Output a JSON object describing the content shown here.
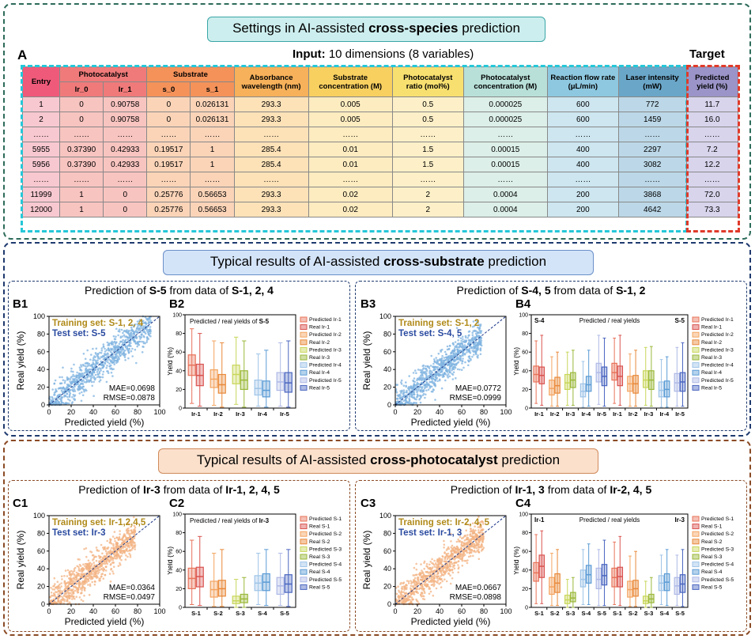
{
  "panelA": {
    "banner_prefix": "Settings in AI-assisted ",
    "banner_bold": "cross-species",
    "banner_suffix": " prediction",
    "label": "A",
    "input_bold": "Input:",
    "input_rest": " 10 dimensions (8 variables)",
    "target": "Target",
    "headers": {
      "entry": "Entry",
      "photocatalyst": "Photocatalyst",
      "ir0": "Ir_0",
      "ir1": "Ir_1",
      "substrate": "Substrate",
      "s0": "s_0",
      "s1": "s_1",
      "absorbance": "Absorbance wavelength (nm)",
      "subconc": "Substrate concentration (M)",
      "ratio": "Photocatalyst ratio (mol%)",
      "pcconc": "Photocatalyst concentration (M)",
      "flow": "Reaction flow rate (μL/min)",
      "laser": "Laser intensity (mW)",
      "yield": "Predicted yield (%)"
    },
    "rows": [
      [
        "1",
        "0",
        "0.90758",
        "0",
        "0.026131",
        "293.3",
        "0.005",
        "0.5",
        "0.000025",
        "600",
        "772",
        "11.7"
      ],
      [
        "2",
        "0",
        "0.90758",
        "0",
        "0.026131",
        "293.3",
        "0.005",
        "0.5",
        "0.000025",
        "600",
        "1459",
        "16.0"
      ],
      [
        "……",
        "……",
        "……",
        "……",
        "……",
        "……",
        "……",
        "……",
        "……",
        "……",
        "……",
        "……"
      ],
      [
        "5955",
        "0.37390",
        "0.42933",
        "0.19517",
        "1",
        "285.4",
        "0.01",
        "1.5",
        "0.00015",
        "400",
        "2297",
        "7.2"
      ],
      [
        "5956",
        "0.37390",
        "0.42933",
        "0.19517",
        "1",
        "285.4",
        "0.01",
        "1.5",
        "0.00015",
        "400",
        "3082",
        "12.2"
      ],
      [
        "……",
        "……",
        "……",
        "……",
        "……",
        "……",
        "……",
        "……",
        "……",
        "……",
        "……",
        "……"
      ],
      [
        "11999",
        "1",
        "0",
        "0.25776",
        "0.56653",
        "293.3",
        "0.02",
        "2",
        "0.0004",
        "200",
        "3868",
        "72.0"
      ],
      [
        "12000",
        "1",
        "0",
        "0.25776",
        "0.56653",
        "293.3",
        "0.02",
        "2",
        "0.0004",
        "200",
        "4642",
        "73.3"
      ]
    ]
  },
  "panelB": {
    "banner_prefix": "Typical results of AI-assisted ",
    "banner_bold": "cross-substrate",
    "banner_suffix": " prediction",
    "left_title": {
      "a": "Prediction of ",
      "b": "S-5",
      "c": " from data of ",
      "d": "S-1, 2, 4"
    },
    "right_title": {
      "a": "Prediction of ",
      "b": "S-4, 5",
      "c": " from data of ",
      "d": "S-1, 2"
    }
  },
  "panelC": {
    "banner_prefix": "Typical results of AI-assisted ",
    "banner_bold": "cross-photocatalyst",
    "banner_suffix": " prediction",
    "left_title": {
      "a": "Prediction of ",
      "b": "Ir-3",
      "c": " from data of ",
      "d": "Ir-1, 2, 4, 5"
    },
    "right_title": {
      "a": "Prediction of ",
      "b": "Ir-1, 3",
      "c": " from data of ",
      "d": "Ir-2, 4, 5"
    }
  },
  "chart_data": [
    {
      "id": "B1",
      "type": "scatter",
      "xlabel": "Predicted yield (%)",
      "ylabel": "Real yield (%)",
      "xlim": [
        0,
        100
      ],
      "ylim": [
        0,
        100
      ],
      "ticks": [
        0,
        20,
        40,
        60,
        80,
        100
      ],
      "training": "Training set: S-1, 2, 4",
      "test": "Test set: S-5",
      "mae": "MAE=0.0698",
      "rmse": "RMSE=0.0878",
      "color": "#7fb3e0",
      "xmax_data": 92
    },
    {
      "id": "B2",
      "type": "box",
      "title_prefix": "Predicted / real yields of ",
      "title_bold": "S-5",
      "ylabel": "Yield (%)",
      "ylim": [
        0,
        100
      ],
      "ticks": [
        0,
        20,
        40,
        60,
        80,
        100
      ],
      "categories": [
        "Ir-1",
        "Ir-2",
        "Ir-3",
        "Ir-4",
        "Ir-5"
      ],
      "legend": [
        "Predicted Ir-1",
        "Real Ir-1",
        "Predicted Ir-2",
        "Real Ir-2",
        "Predicted Ir-3",
        "Real Ir-3",
        "Predicted Ir-4",
        "Real Ir-4",
        "Predicted Ir-5",
        "Real Ir-5"
      ],
      "colors": [
        "#e8735a",
        "#d9534f",
        "#f4a460",
        "#e8893a",
        "#c8d65a",
        "#9ab83a",
        "#9ec4e8",
        "#5b9bd5",
        "#aeb9e6",
        "#4a66c0"
      ],
      "boxes": [
        {
          "q1": 35,
          "med": 46,
          "q3": 57,
          "lo": 5,
          "hi": 85
        },
        {
          "q1": 24,
          "med": 35,
          "q3": 47,
          "lo": 2,
          "hi": 80
        },
        {
          "q1": 22,
          "med": 31,
          "q3": 41,
          "lo": 3,
          "hi": 72
        },
        {
          "q1": 16,
          "med": 25,
          "q3": 36,
          "lo": 1,
          "hi": 70
        },
        {
          "q1": 26,
          "med": 36,
          "q3": 46,
          "lo": 4,
          "hi": 76
        },
        {
          "q1": 20,
          "med": 30,
          "q3": 40,
          "lo": 1,
          "hi": 72
        },
        {
          "q1": 14,
          "med": 21,
          "q3": 30,
          "lo": 2,
          "hi": 58
        },
        {
          "q1": 12,
          "med": 19,
          "q3": 29,
          "lo": 1,
          "hi": 62
        },
        {
          "q1": 19,
          "med": 28,
          "q3": 38,
          "lo": 2,
          "hi": 70
        },
        {
          "q1": 17,
          "med": 27,
          "q3": 38,
          "lo": 1,
          "hi": 72
        }
      ]
    },
    {
      "id": "B3",
      "type": "scatter",
      "xlabel": "Predicted yield (%)",
      "ylabel": "Real yield (%)",
      "xlim": [
        0,
        100
      ],
      "ylim": [
        0,
        100
      ],
      "ticks": [
        0,
        20,
        40,
        60,
        80,
        100
      ],
      "training": "Training set: S-1, 2",
      "test": "Test set: S-4, 5",
      "mae": "MAE=0.0772",
      "rmse": "RMSE=0.0999",
      "color": "#7fb3e0",
      "xmax_data": 78
    },
    {
      "id": "B4",
      "type": "box",
      "title_left": "S-4",
      "title_mid": "Predicted / real yields",
      "title_right": "S-5",
      "ylabel": "Yield (%)",
      "ylim": [
        0,
        100
      ],
      "ticks": [
        0,
        20,
        40,
        60,
        80,
        100
      ],
      "categories": [
        "Ir-1",
        "Ir-2",
        "Ir-3",
        "Ir-4",
        "Ir-5",
        "Ir-1",
        "Ir-2",
        "Ir-3",
        "Ir-4",
        "Ir-5"
      ],
      "legend": [
        "Predicted Ir-1",
        "Real Ir-1",
        "Predicted Ir-2",
        "Real Ir-2",
        "Predicted Ir-3",
        "Real Ir-3",
        "Predicted Ir-4",
        "Real Ir-4",
        "Predicted Ir-5",
        "Real Ir-5"
      ],
      "colors": [
        "#e8735a",
        "#d9534f",
        "#f4a460",
        "#e8893a",
        "#c8d65a",
        "#9ab83a",
        "#9ec4e8",
        "#5b9bd5",
        "#aeb9e6",
        "#4a66c0"
      ],
      "boxes": [
        {
          "q1": 28,
          "med": 36,
          "q3": 45,
          "lo": 5,
          "hi": 72
        },
        {
          "q1": 26,
          "med": 35,
          "q3": 44,
          "lo": 3,
          "hi": 78
        },
        {
          "q1": 14,
          "med": 21,
          "q3": 30,
          "lo": 2,
          "hi": 55
        },
        {
          "q1": 16,
          "med": 24,
          "q3": 33,
          "lo": 2,
          "hi": 60
        },
        {
          "q1": 20,
          "med": 27,
          "q3": 36,
          "lo": 3,
          "hi": 60
        },
        {
          "q1": 22,
          "med": 30,
          "q3": 38,
          "lo": 3,
          "hi": 62
        },
        {
          "q1": 12,
          "med": 18,
          "q3": 26,
          "lo": 1,
          "hi": 50
        },
        {
          "q1": 18,
          "med": 25,
          "q3": 34,
          "lo": 2,
          "hi": 62
        },
        {
          "q1": 28,
          "med": 38,
          "q3": 48,
          "lo": 4,
          "hi": 78
        },
        {
          "q1": 24,
          "med": 34,
          "q3": 44,
          "lo": 2,
          "hi": 75
        },
        {
          "q1": 30,
          "med": 38,
          "q3": 48,
          "lo": 5,
          "hi": 75
        },
        {
          "q1": 24,
          "med": 34,
          "q3": 45,
          "lo": 3,
          "hi": 78
        },
        {
          "q1": 18,
          "med": 26,
          "q3": 34,
          "lo": 2,
          "hi": 58
        },
        {
          "q1": 16,
          "med": 26,
          "q3": 35,
          "lo": 2,
          "hi": 62
        },
        {
          "q1": 22,
          "med": 30,
          "q3": 40,
          "lo": 3,
          "hi": 65
        },
        {
          "q1": 20,
          "med": 30,
          "q3": 40,
          "lo": 2,
          "hi": 66
        },
        {
          "q1": 12,
          "med": 19,
          "q3": 28,
          "lo": 1,
          "hi": 52
        },
        {
          "q1": 12,
          "med": 20,
          "q3": 29,
          "lo": 1,
          "hi": 55
        },
        {
          "q1": 18,
          "med": 27,
          "q3": 37,
          "lo": 2,
          "hi": 65
        },
        {
          "q1": 18,
          "med": 28,
          "q3": 38,
          "lo": 2,
          "hi": 70
        }
      ]
    },
    {
      "id": "C1",
      "type": "scatter",
      "xlabel": "Predicted yield (%)",
      "ylabel": "Real yield (%)",
      "xlim": [
        0,
        100
      ],
      "ylim": [
        0,
        100
      ],
      "ticks": [
        0,
        20,
        40,
        60,
        80,
        100
      ],
      "training": "Training set: Ir-1,2,4,5",
      "test": "Test set: Ir-3",
      "mae": "MAE=0.0364",
      "rmse": "RMSE=0.0497",
      "color": "#f3b383",
      "xmax_data": 78
    },
    {
      "id": "C2",
      "type": "box",
      "title_prefix": "Predicted / real yields of ",
      "title_bold": "Ir-3",
      "ylabel": "Yield (%)",
      "ylim": [
        0,
        100
      ],
      "ticks": [
        0,
        20,
        40,
        60,
        80,
        100
      ],
      "categories": [
        "S-1",
        "S-2",
        "S-3",
        "S-4",
        "S-5"
      ],
      "legend": [
        "Predicted S-1",
        "Real S-1",
        "Predicted S-2",
        "Real S-2",
        "Predicted S-3",
        "Real S-3",
        "Predicted S-4",
        "Real S-4",
        "Predicted S-5",
        "Real S-5"
      ],
      "colors": [
        "#e8735a",
        "#d9534f",
        "#f4a460",
        "#e8893a",
        "#c8d65a",
        "#9ab83a",
        "#9ec4e8",
        "#5b9bd5",
        "#aeb9e6",
        "#4a66c0"
      ],
      "boxes": [
        {
          "q1": 20,
          "med": 31,
          "q3": 42,
          "lo": 3,
          "hi": 72
        },
        {
          "q1": 22,
          "med": 33,
          "q3": 43,
          "lo": 2,
          "hi": 76
        },
        {
          "q1": 11,
          "med": 19,
          "q3": 28,
          "lo": 1,
          "hi": 58
        },
        {
          "q1": 12,
          "med": 20,
          "q3": 29,
          "lo": 1,
          "hi": 62
        },
        {
          "q1": 4,
          "med": 7,
          "q3": 12,
          "lo": 0,
          "hi": 30
        },
        {
          "q1": 5,
          "med": 9,
          "q3": 14,
          "lo": 0,
          "hi": 32
        },
        {
          "q1": 18,
          "med": 26,
          "q3": 34,
          "lo": 3,
          "hi": 58
        },
        {
          "q1": 18,
          "med": 27,
          "q3": 36,
          "lo": 2,
          "hi": 62
        },
        {
          "q1": 14,
          "med": 23,
          "q3": 32,
          "lo": 2,
          "hi": 58
        },
        {
          "q1": 16,
          "med": 25,
          "q3": 35,
          "lo": 1,
          "hi": 62
        }
      ]
    },
    {
      "id": "C3",
      "type": "scatter",
      "xlabel": "Predicted yield (%)",
      "ylabel": "Real yield (%)",
      "xlim": [
        0,
        100
      ],
      "ylim": [
        0,
        100
      ],
      "ticks": [
        0,
        20,
        40,
        60,
        80,
        100
      ],
      "training": "Training set: Ir-2, 4, 5",
      "test": "Test set: Ir-1, 3",
      "mae": "MAE=0.0667",
      "rmse": "RMSE=0.0898",
      "color": "#f3b383",
      "xmax_data": 80
    },
    {
      "id": "C4",
      "type": "box",
      "title_left": "Ir-1",
      "title_mid": "Predicted / real yields",
      "title_right": "Ir-3",
      "ylabel": "Yield (%)",
      "ylim": [
        0,
        100
      ],
      "ticks": [
        0,
        20,
        40,
        60,
        80,
        100
      ],
      "categories": [
        "S-1",
        "S-2",
        "S-3",
        "S-4",
        "S-5",
        "S-1",
        "S-2",
        "S-3",
        "S-4",
        "S-5"
      ],
      "legend": [
        "Predicted S-1",
        "Real S-1",
        "Predicted S-2",
        "Real S-2",
        "Predicted S-3",
        "Real S-3",
        "Predicted S-4",
        "Real S-4",
        "Predicted S-5",
        "Real S-5"
      ],
      "colors": [
        "#e8735a",
        "#d9534f",
        "#f4a460",
        "#e8893a",
        "#c8d65a",
        "#9ab83a",
        "#9ec4e8",
        "#5b9bd5",
        "#aeb9e6",
        "#4a66c0"
      ],
      "boxes": [
        {
          "q1": 28,
          "med": 37,
          "q3": 48,
          "lo": 4,
          "hi": 78
        },
        {
          "q1": 32,
          "med": 44,
          "q3": 56,
          "lo": 4,
          "hi": 82
        },
        {
          "q1": 14,
          "med": 22,
          "q3": 32,
          "lo": 2,
          "hi": 58
        },
        {
          "q1": 16,
          "med": 26,
          "q3": 36,
          "lo": 2,
          "hi": 62
        },
        {
          "q1": 4,
          "med": 8,
          "q3": 13,
          "lo": 0,
          "hi": 30
        },
        {
          "q1": 6,
          "med": 10,
          "q3": 16,
          "lo": 0,
          "hi": 32
        },
        {
          "q1": 22,
          "med": 30,
          "q3": 40,
          "lo": 3,
          "hi": 62
        },
        {
          "q1": 26,
          "med": 35,
          "q3": 45,
          "lo": 3,
          "hi": 68
        },
        {
          "q1": 20,
          "med": 30,
          "q3": 42,
          "lo": 2,
          "hi": 62
        },
        {
          "q1": 24,
          "med": 34,
          "q3": 46,
          "lo": 2,
          "hi": 72
        },
        {
          "q1": 22,
          "med": 32,
          "q3": 42,
          "lo": 3,
          "hi": 70
        },
        {
          "q1": 22,
          "med": 33,
          "q3": 43,
          "lo": 2,
          "hi": 76
        },
        {
          "q1": 11,
          "med": 19,
          "q3": 28,
          "lo": 1,
          "hi": 55
        },
        {
          "q1": 12,
          "med": 20,
          "q3": 29,
          "lo": 1,
          "hi": 60
        },
        {
          "q1": 4,
          "med": 7,
          "q3": 12,
          "lo": 0,
          "hi": 28
        },
        {
          "q1": 5,
          "med": 9,
          "q3": 14,
          "lo": 0,
          "hi": 32
        },
        {
          "q1": 18,
          "med": 26,
          "q3": 34,
          "lo": 3,
          "hi": 56
        },
        {
          "q1": 18,
          "med": 27,
          "q3": 36,
          "lo": 2,
          "hi": 62
        },
        {
          "q1": 14,
          "med": 23,
          "q3": 32,
          "lo": 2,
          "hi": 56
        },
        {
          "q1": 16,
          "med": 25,
          "q3": 35,
          "lo": 1,
          "hi": 62
        }
      ]
    }
  ]
}
